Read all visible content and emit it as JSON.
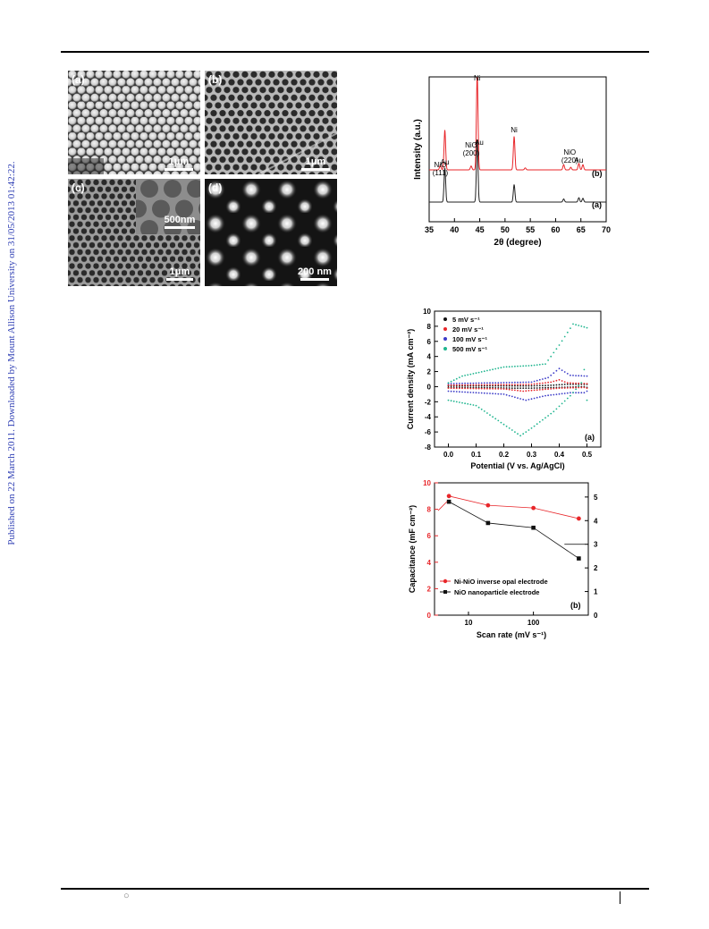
{
  "watermark": "Published on 22 March 2011. Downloaded by Mount Allison University on 31/05/2013 01:42:22.",
  "sem_panels": [
    {
      "tag": "(a)",
      "scale": "1μm"
    },
    {
      "tag": "(b)",
      "scale": "1μm"
    },
    {
      "tag": "(c)",
      "scale": "1μm",
      "inset_scale": "500nm"
    },
    {
      "tag": "(d)",
      "scale": "200 nm"
    }
  ],
  "footer": {
    "bullet": "○"
  },
  "chart_data": [
    {
      "type": "line",
      "xlabel": "2θ (degree)",
      "ylabel": "Intensity (a.u.)",
      "xlim": [
        35,
        70
      ],
      "xticks": [
        35,
        40,
        45,
        50,
        55,
        60,
        65,
        70
      ],
      "series": [
        {
          "name": "(a)",
          "color": "#222222",
          "baseline": 0,
          "peaks": [
            [
              38.1,
              55
            ],
            [
              44.5,
              100
            ],
            [
              51.8,
              28
            ],
            [
              61.6,
              5
            ],
            [
              64.6,
              7
            ],
            [
              65.4,
              6
            ]
          ]
        },
        {
          "name": "(b)",
          "color": "#e8262a",
          "baseline": 1,
          "peaks": [
            [
              37.2,
              7
            ],
            [
              38.1,
              62
            ],
            [
              43.3,
              6
            ],
            [
              44.5,
              150
            ],
            [
              51.8,
              52
            ],
            [
              54.0,
              3
            ],
            [
              61.6,
              8
            ],
            [
              63.0,
              4
            ],
            [
              64.6,
              10
            ],
            [
              65.4,
              8
            ]
          ]
        }
      ],
      "annotations": [
        {
          "text": "NiO (111)",
          "x": 37.2
        },
        {
          "text": "Au",
          "x": 38.1
        },
        {
          "text": "NiO (200)",
          "x": 43.3
        },
        {
          "text": "Ni",
          "x": 44.5
        },
        {
          "text": "Au",
          "x": 44.9
        },
        {
          "text": "Ni",
          "x": 51.8
        },
        {
          "text": "NiO (220)",
          "x": 62.8
        },
        {
          "text": "Au",
          "x": 64.6
        }
      ],
      "labels": [
        "(b)",
        "(a)"
      ]
    },
    {
      "type": "line",
      "xlabel": "Potential (V vs. Ag/AgCl)",
      "ylabel": "Current density (mA cm⁻²)",
      "xlim": [
        -0.05,
        0.55
      ],
      "ylim": [
        -8,
        10
      ],
      "xticks": [
        0.0,
        0.1,
        0.2,
        0.3,
        0.4,
        0.5
      ],
      "yticks": [
        -8,
        -6,
        -4,
        -2,
        0,
        2,
        4,
        6,
        8,
        10
      ],
      "panel_label": "(a)",
      "legend_position": "top-left",
      "series": [
        {
          "name": "5 mV s⁻¹",
          "color": "#111111",
          "upper": [
            [
              0.0,
              0.1
            ],
            [
              0.3,
              0.1
            ],
            [
              0.38,
              0.2
            ],
            [
              0.42,
              0.3
            ],
            [
              0.5,
              0.3
            ]
          ],
          "lower": [
            [
              0.5,
              0.0
            ],
            [
              0.4,
              -0.1
            ],
            [
              0.3,
              -0.2
            ],
            [
              0.25,
              -0.2
            ],
            [
              0.0,
              -0.1
            ]
          ]
        },
        {
          "name": "20 mV s⁻¹",
          "color": "#e8262a",
          "upper": [
            [
              0.0,
              0.2
            ],
            [
              0.3,
              0.3
            ],
            [
              0.37,
              0.6
            ],
            [
              0.4,
              0.9
            ],
            [
              0.43,
              0.5
            ],
            [
              0.5,
              0.4
            ]
          ],
          "lower": [
            [
              0.5,
              -0.1
            ],
            [
              0.4,
              -0.2
            ],
            [
              0.3,
              -0.5
            ],
            [
              0.27,
              -0.6
            ],
            [
              0.2,
              -0.3
            ],
            [
              0.0,
              -0.2
            ]
          ]
        },
        {
          "name": "100 mV s⁻¹",
          "color": "#3c3cc8",
          "upper": [
            [
              0.0,
              0.4
            ],
            [
              0.3,
              0.6
            ],
            [
              0.36,
              1.2
            ],
            [
              0.4,
              2.4
            ],
            [
              0.44,
              1.5
            ],
            [
              0.5,
              1.4
            ]
          ],
          "lower": [
            [
              0.5,
              -0.8
            ],
            [
              0.44,
              -0.8
            ],
            [
              0.35,
              -1.2
            ],
            [
              0.28,
              -1.8
            ],
            [
              0.2,
              -1.0
            ],
            [
              0.0,
              -0.6
            ]
          ]
        },
        {
          "name": "500 mV s⁻¹",
          "color": "#1fb58f",
          "upper": [
            [
              0.0,
              0.5
            ],
            [
              0.05,
              1.4
            ],
            [
              0.2,
              2.6
            ],
            [
              0.3,
              2.8
            ],
            [
              0.35,
              3.0
            ],
            [
              0.4,
              5.5
            ],
            [
              0.45,
              8.3
            ],
            [
              0.5,
              7.8
            ]
          ],
          "lower": [
            [
              0.5,
              4.0
            ],
            [
              0.48,
              0.5
            ],
            [
              0.44,
              -1.2
            ],
            [
              0.38,
              -3.3
            ],
            [
              0.3,
              -5.5
            ],
            [
              0.26,
              -6.5
            ],
            [
              0.2,
              -5.0
            ],
            [
              0.1,
              -2.5
            ],
            [
              0.0,
              -1.8
            ]
          ]
        }
      ]
    },
    {
      "type": "line",
      "xlabel": "Scan rate (mV s⁻¹)",
      "ylabel": "Capacitance (mF cm⁻²)",
      "xscale": "log",
      "xlim": [
        3,
        700
      ],
      "xticks": [
        10,
        100
      ],
      "ylim": [
        0,
        10
      ],
      "yticks": [
        0,
        2,
        4,
        6,
        8,
        10
      ],
      "y2lim": [
        0,
        5.6
      ],
      "y2ticks": [
        0,
        1,
        2,
        3,
        4,
        5
      ],
      "panel_label": "(b)",
      "legend_position": "bottom-left",
      "series": [
        {
          "name": "Ni-NiO inverse opal electrode",
          "color": "#e8262a",
          "axis": "left",
          "marker": "circle",
          "x": [
            5,
            20,
            100,
            500
          ],
          "y": [
            9.0,
            8.3,
            8.1,
            7.3
          ]
        },
        {
          "name": "NiO nanoparticle electrode",
          "color": "#111111",
          "axis": "right",
          "marker": "square",
          "x": [
            5,
            20,
            100,
            500
          ],
          "y": [
            4.8,
            3.9,
            3.7,
            2.4
          ]
        }
      ]
    }
  ]
}
